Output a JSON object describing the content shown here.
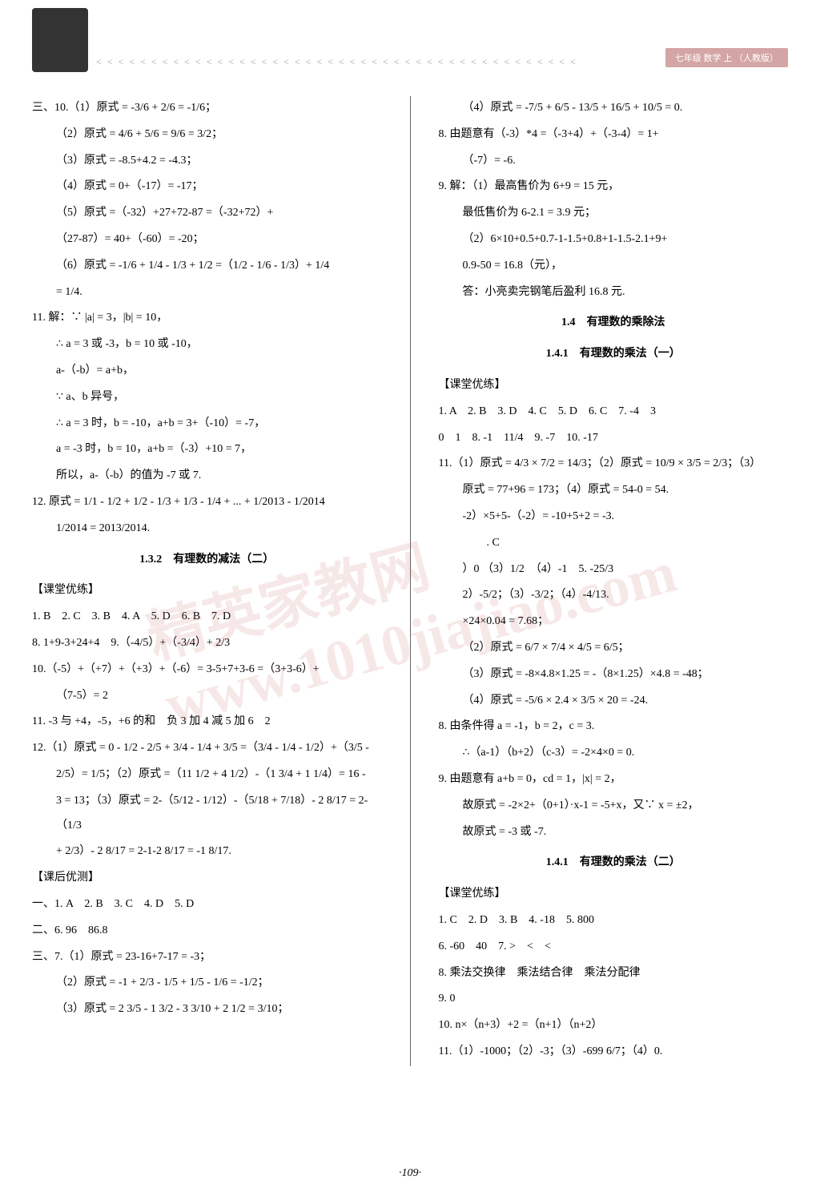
{
  "page_number": "·109·",
  "header": {
    "wave_pattern": "< < < < < < < < < < < < < < < < < < < < < < < < < < < < < < < < < < < < < < < < < < < <",
    "badge_text": "七年级 数学 上 （人教版）"
  },
  "watermark": "精英家教网 www.1010jiajiao.com",
  "left_column": {
    "q10_header": "三、10.（1）原式 = -3/6 + 2/6 = -1/6；",
    "q10_2": "（2）原式 = 4/6 + 5/6 = 9/6 = 3/2；",
    "q10_3": "（3）原式 = -8.5+4.2 = -4.3；",
    "q10_4": "（4）原式 = 0+（-17）= -17；",
    "q10_5": "（5）原式 =（-32）+27+72-87 =（-32+72）+",
    "q10_5b": "（27-87）= 40+（-60）= -20；",
    "q10_6": "（6）原式 = -1/6 + 1/4 - 1/3 + 1/2 =（1/2 - 1/6 - 1/3）+ 1/4",
    "q10_6b": "= 1/4.",
    "q11": "11. 解：∵ |a| = 3，|b| = 10，",
    "q11b": "∴ a = 3 或 -3，b = 10 或 -10，",
    "q11c": "a-（-b）= a+b，",
    "q11d": "∵ a、b 异号，",
    "q11e": "∴ a = 3 时，b = -10，a+b = 3+（-10）= -7，",
    "q11f": "a = -3 时，b = 10，a+b =（-3）+10 = 7，",
    "q11g": "所以，a-（-b）的值为 -7 或 7.",
    "q12": "12. 原式 = 1/1 - 1/2 + 1/2 - 1/3 + 1/3 - 1/4 + ... + 1/2013 - 1/2014",
    "q12b": "1/2014 = 2013/2014.",
    "sec132_title": "1.3.2　有理数的减法（二）",
    "ketang1": "【课堂优练】",
    "ans1": "1. B　2. C　3. B　4. A　5. D　6. B　7. D",
    "ans8": "8. 1+9-3+24+4　9.（-4/5）+（-3/4）+ 2/3",
    "ans10": "10.（-5）+（+7）+（+3）+（-6）= 3-5+7+3-6 =（3+3-6）+",
    "ans10b": "（7-5）= 2",
    "ans11": "11. -3 与 +4，-5，+6 的和　负 3 加 4 减 5 加 6　2",
    "ans12": "12.（1）原式 = 0 - 1/2 - 2/5 + 3/4 - 1/4 + 3/5 =（3/4 - 1/4 - 1/2）+（3/5 -",
    "ans12b": "2/5）= 1/5；（2）原式 =（11 1/2 + 4 1/2）-（1 3/4 + 1 1/4）= 16 -",
    "ans12c": "3 = 13；（3）原式 = 2-（5/12 - 1/12）-（5/18 + 7/18）- 2 8/17 = 2-（1/3",
    "ans12d": "+ 2/3）- 2 8/17 = 2-1-2 8/17 = -1 8/17.",
    "kehou1": "【课后优测】",
    "kh1": "一、1. A　2. B　3. C　4. D　5. D",
    "kh2": "二、6. 96　86.8",
    "kh3": "三、7.（1）原式 = 23-16+7-17 = -3；",
    "kh3_2": "（2）原式 = -1 + 2/3 - 1/5 + 1/5 - 1/6 = -1/2；",
    "kh3_3": "（3）原式 = 2 3/5 - 1 3/2 - 3 3/10 + 2 1/2 = 3/10；"
  },
  "right_column": {
    "r4": "（4）原式 = -7/5 + 6/5 - 13/5 + 16/5 + 10/5 = 0.",
    "r8": "8. 由题意有（-3）*4 =（-3+4）+（-3-4）= 1+",
    "r8b": "（-7）= -6.",
    "r9": "9. 解：（1）最高售价为 6+9 = 15 元，",
    "r9b": "最低售价为 6-2.1 = 3.9 元；",
    "r9c": "（2）6×10+0.5+0.7-1-1.5+0.8+1-1.5-2.1+9+",
    "r9d": "0.9-50 = 16.8（元），",
    "r9e": "答：小亮卖完钢笔后盈利 16.8 元.",
    "sec14_title": "1.4　有理数的乘除法",
    "sec141_title": "1.4.1　有理数的乘法（一）",
    "ketang2": "【课堂优练】",
    "r_ans1": "1. A　2. B　3. D　4. C　5. D　6. C　7. -4　3",
    "r_ans1b": "0　1　8. -1　11/4　9. -7　10. -17",
    "r_ans11": "11.（1）原式 = 4/3 × 7/2 = 14/3；（2）原式 = 10/9 × 3/5 = 2/3；（3）",
    "r_ans11b": "原式 = 77+96 = 173；（4）原式 = 54-0 = 54.",
    "r_ans11c": "-2）×5+5-（-2）= -10+5+2 = -3.",
    "r_c": ". C",
    "r_ans_mid": "）0 （3）1/2　（4）-1　5. -25/3",
    "r_ans_mid2": "2）-5/2；（3）-3/2；（4）-4/13.",
    "r_calc": "×24×0.04 = 7.68；",
    "r_2": "（2）原式 = 6/7 × 7/4 × 4/5 = 6/5；",
    "r_3": "（3）原式 = -8×4.8×1.25 = -（8×1.25）×4.8 = -48；",
    "r_4": "（4）原式 = -5/6 × 2.4 × 3/5 × 20 = -24.",
    "r_8r": "8. 由条件得 a = -1，b = 2，c = 3.",
    "r_8rb": "∴（a-1）（b+2）（c-3）= -2×4×0 = 0.",
    "r_9r": "9. 由题意有 a+b = 0，cd = 1，|x| = 2，",
    "r_9rb": "故原式 = -2×2+（0+1）·x-1 = -5+x，又∵ x = ±2，",
    "r_9rc": "故原式 = -3 或 -7.",
    "sec141b_title": "1.4.1　有理数的乘法（二）",
    "ketang3": "【课堂优练】",
    "r2_ans1": "1. C　2. D　3. B　4. -18　5. 800",
    "r2_ans6": "6. -60　40　7. >　<　<",
    "r2_ans8": "8. 乘法交换律　乘法结合律　乘法分配律",
    "r2_ans9": "9. 0",
    "r2_ans10": "10. n×（n+3）+2 =（n+1）（n+2）",
    "r2_ans11": "11.（1）-1000；（2）-3；（3）-699 6/7；（4）0."
  }
}
